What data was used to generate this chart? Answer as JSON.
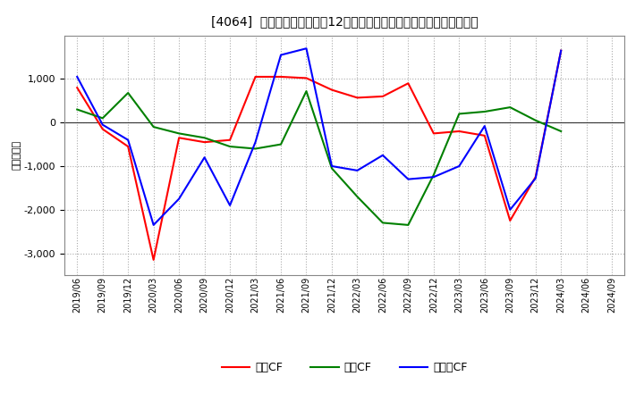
{
  "title": "[4064]  キャッシュフローの12か月移動合計の対前年同期増減額の推移",
  "ylabel": "（百万円）",
  "x_labels": [
    "2019/06",
    "2019/09",
    "2019/12",
    "2020/03",
    "2020/06",
    "2020/09",
    "2020/12",
    "2021/03",
    "2021/06",
    "2021/09",
    "2021/12",
    "2022/03",
    "2022/06",
    "2022/09",
    "2022/12",
    "2023/03",
    "2023/06",
    "2023/09",
    "2023/12",
    "2024/03",
    "2024/06",
    "2024/09"
  ],
  "eigyo_cf": [
    800,
    -150,
    -550,
    -3150,
    -350,
    -450,
    -400,
    1050,
    1050,
    1020,
    750,
    570,
    600,
    900,
    -250,
    -200,
    -300,
    -2250,
    -1250,
    1650,
    null,
    null
  ],
  "toshi_cf": [
    300,
    100,
    680,
    -100,
    -250,
    -350,
    -550,
    -600,
    -500,
    720,
    -1050,
    -1700,
    -2300,
    -2350,
    -1200,
    200,
    250,
    350,
    50,
    -200,
    null,
    null
  ],
  "free_cf": [
    1050,
    -50,
    -400,
    -2350,
    -1750,
    -800,
    -1900,
    -450,
    1550,
    1700,
    -1000,
    -1100,
    -750,
    -1300,
    -1250,
    -1000,
    -80,
    -2000,
    -1280,
    1650,
    null,
    null
  ],
  "eigyo_color": "#ff0000",
  "toshi_color": "#008000",
  "free_color": "#0000ff",
  "ylim": [
    -3500,
    2000
  ],
  "yticks": [
    -3000,
    -2000,
    -1000,
    0,
    1000
  ],
  "background_color": "#ffffff",
  "grid_color": "#aaaaaa",
  "legend_labels": [
    "営業CF",
    "投資CF",
    "フリーCF"
  ]
}
